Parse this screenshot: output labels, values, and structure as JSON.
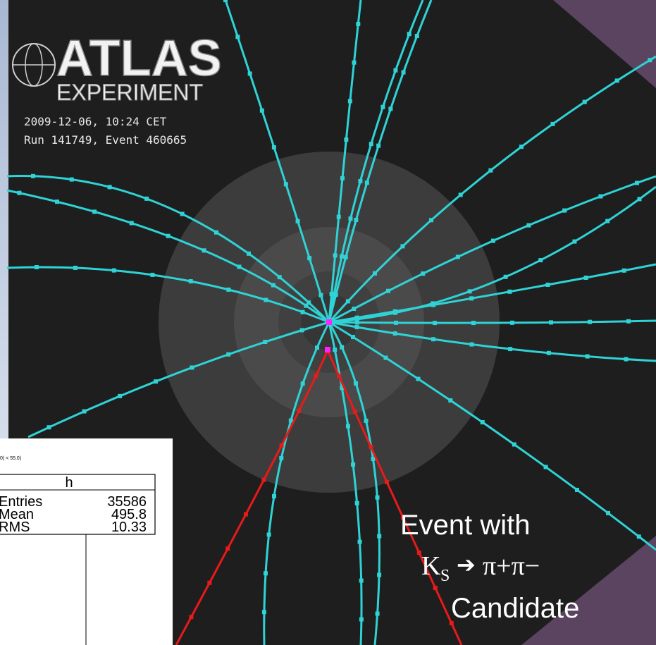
{
  "header": {
    "title": "ATLAS",
    "subtitle": "EXPERIMENT",
    "date": "2009-12-06, 10:24 CET",
    "run": "Run 141749, Event 460665"
  },
  "stats_box": {
    "cut": "0) < 55.0)",
    "name": "h",
    "rows": [
      [
        "Entries",
        "35586"
      ],
      [
        "Mean",
        "495.8"
      ],
      [
        "RMS",
        "10.33"
      ]
    ]
  },
  "caption": {
    "line1": "Event with",
    "particle": "K",
    "subscript": "S",
    "arrow": "➔",
    "decay": "π+π−",
    "line3": "Candidate"
  }
}
